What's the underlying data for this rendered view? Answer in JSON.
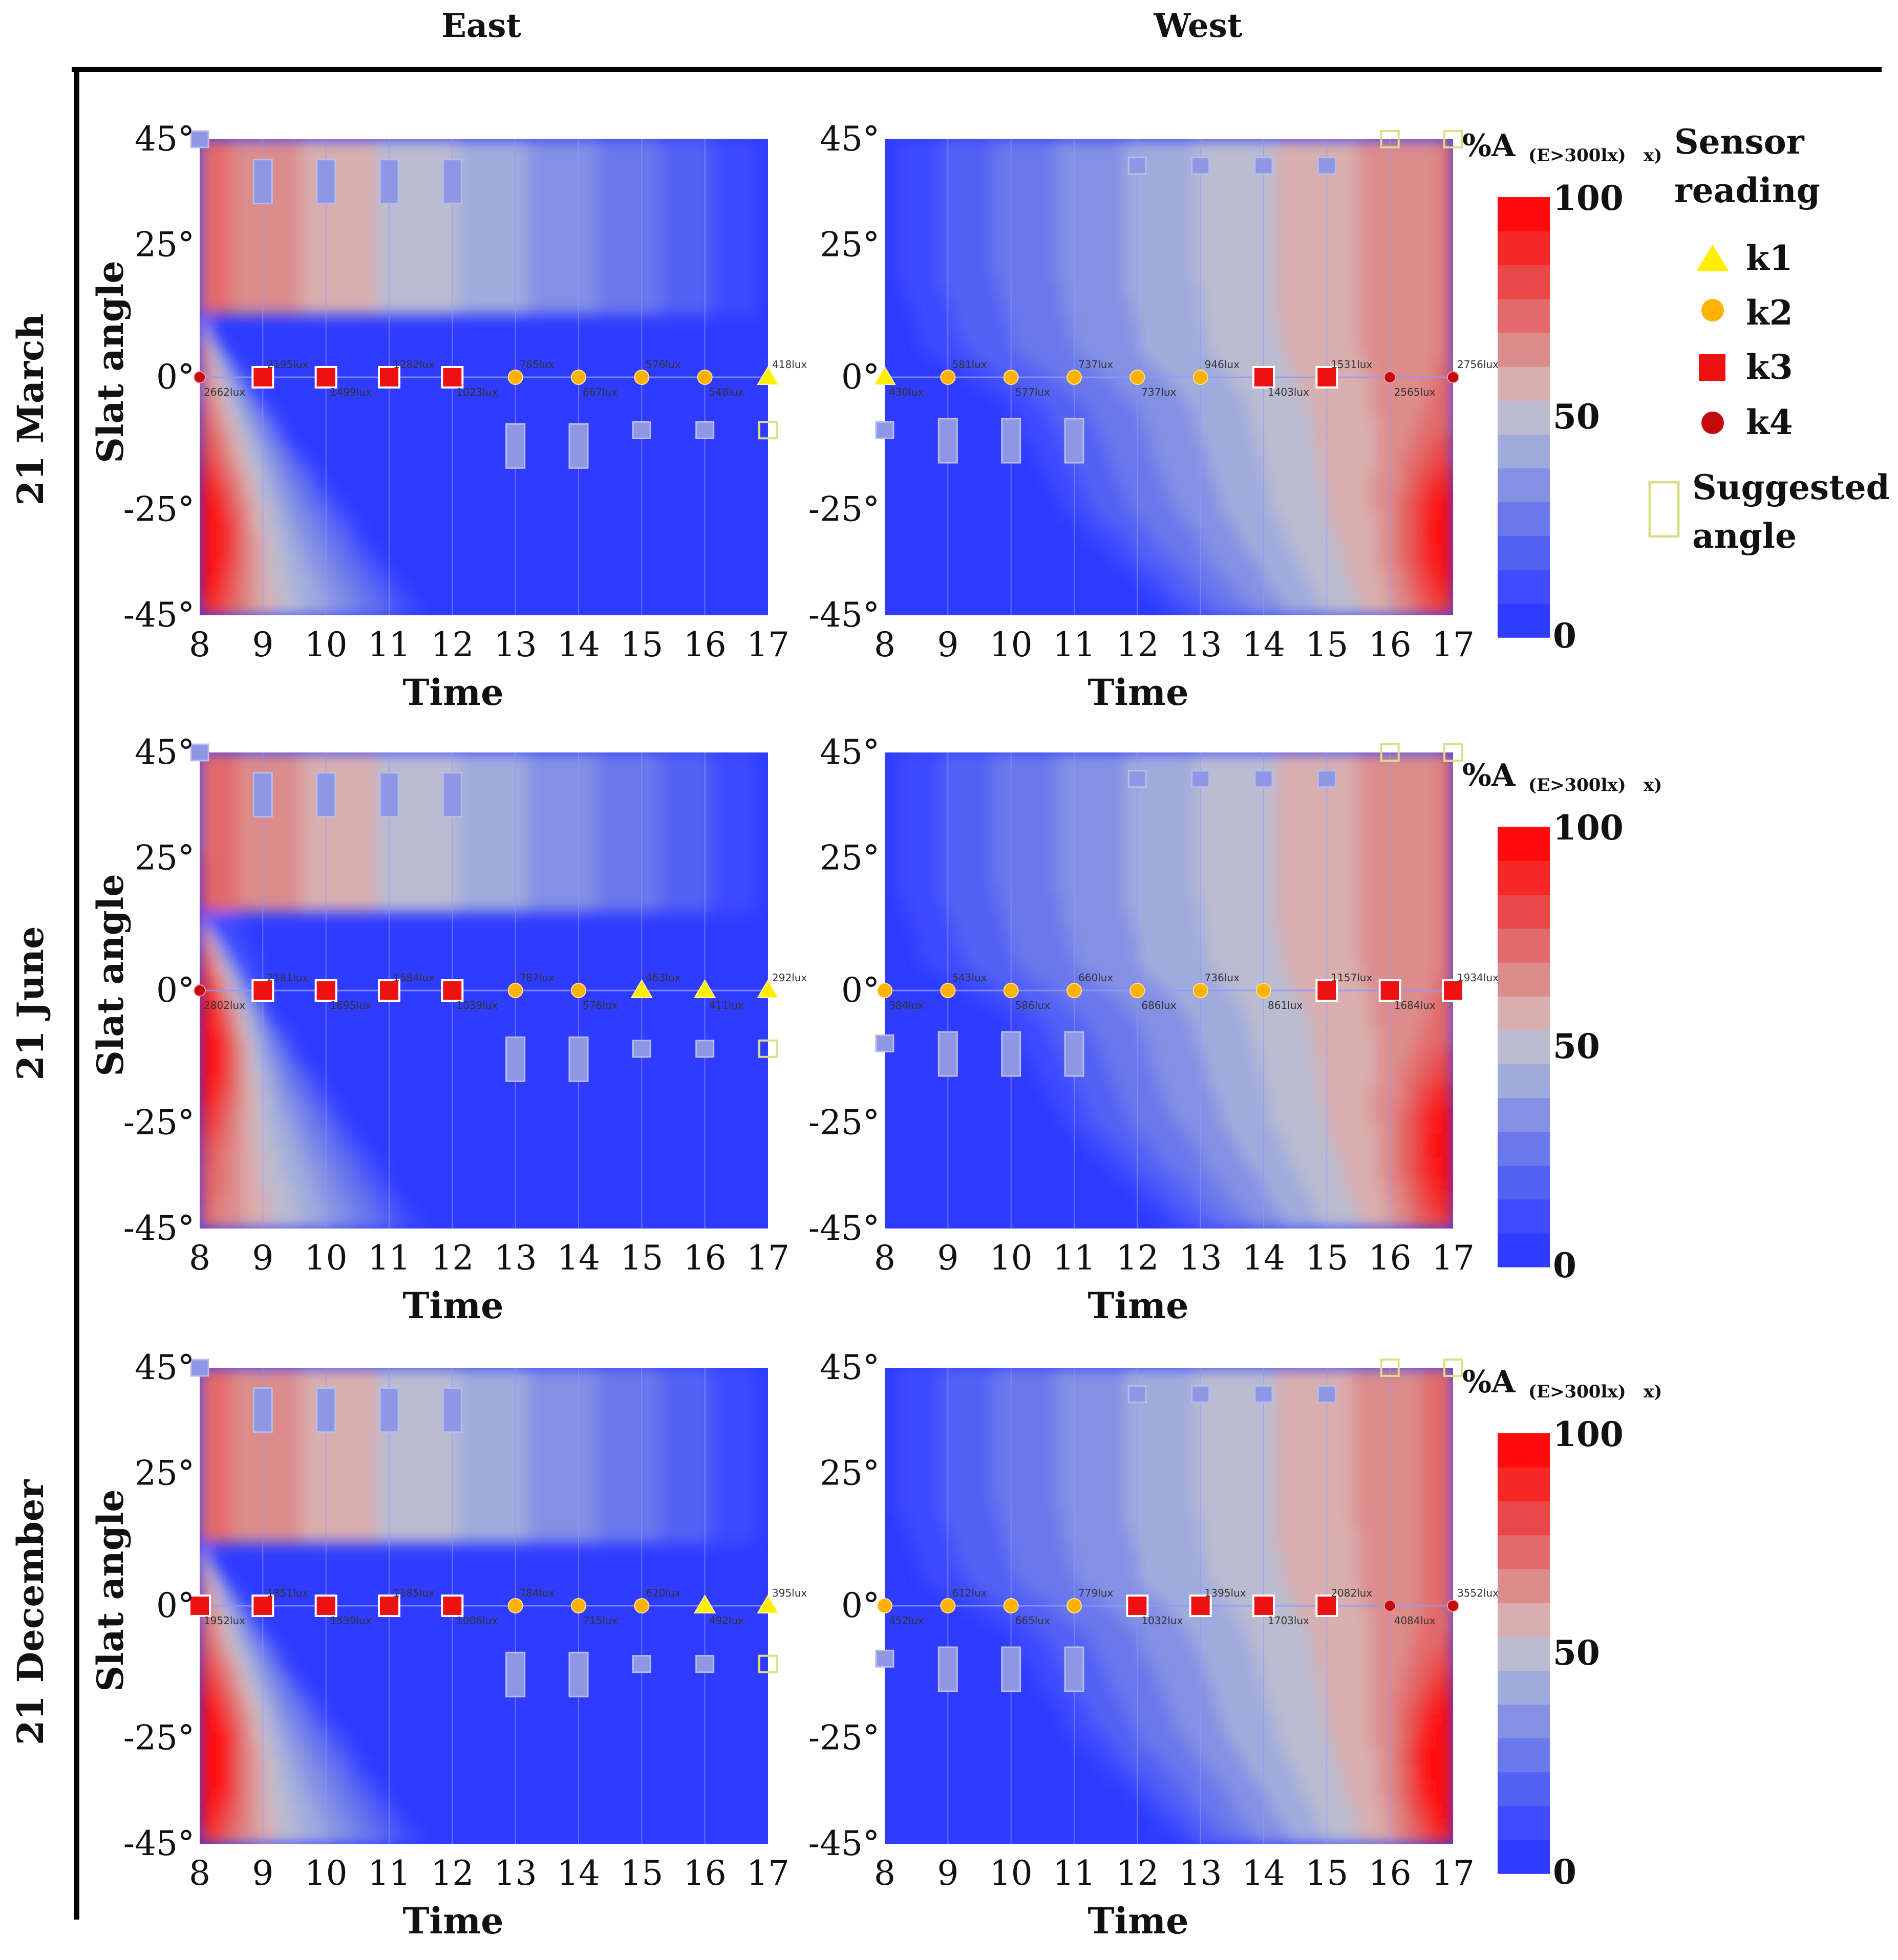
{
  "colors": {
    "background": "#2f3cff",
    "gridline": "#8f98ff",
    "k1": "#ffee00",
    "k2": "#ffb300",
    "k3": "#ee1111",
    "k4": "#c40a0a",
    "suggested": "#dede88",
    "scale": [
      "#2f3cff",
      "#3e4bff",
      "#5362f4",
      "#6a78ec",
      "#8390e4",
      "#a0abdd",
      "#bbbcd0",
      "#d9aeae",
      "#dd8c8c",
      "#e36a6a",
      "#ea4848",
      "#f52727",
      "#ff0b0b"
    ]
  },
  "columns": [
    "East",
    "West"
  ],
  "rows": [
    "21 March",
    "21 June",
    "21 December"
  ],
  "axes": {
    "xlabel": "Time",
    "ylabel": "Slat angle",
    "xticks": [
      "8",
      "9",
      "10",
      "11",
      "12",
      "13",
      "14",
      "15",
      "16",
      "17"
    ],
    "yticks": [
      "45°",
      "25°",
      "0°",
      "-25°",
      "-45°"
    ]
  },
  "colorbar": {
    "title": "%A",
    "subscript": "(E>300lx)",
    "suffix": "x)",
    "ticks": [
      "100",
      "50",
      "0"
    ]
  },
  "legend": {
    "title_line1": "Sensor",
    "title_line2": "reading",
    "items": [
      {
        "key": "k1",
        "label": "k1",
        "shape": "triangle"
      },
      {
        "key": "k2",
        "label": "k2",
        "shape": "circle"
      },
      {
        "key": "k3",
        "label": "k3",
        "shape": "square"
      },
      {
        "key": "k4",
        "label": "k4",
        "shape": "dot"
      }
    ],
    "suggested_line1": "Suggested",
    "suggested_line2": "angle"
  },
  "chart_data": [
    {
      "type": "heatmap",
      "row": "21 March",
      "column": "East",
      "xlabel": "Time",
      "ylabel": "Slat angle",
      "xlim": [
        8,
        17
      ],
      "ylim": [
        -45,
        45
      ],
      "colorbar_range": [
        0,
        100
      ],
      "glare_bands": [
        [
          0,
          12
        ],
        [
          40,
          -45
        ],
        [
          73,
          -30
        ],
        [
          92,
          -10
        ],
        [
          100,
          5
        ],
        [
          100,
          25
        ],
        [
          100,
          45
        ]
      ],
      "extra": 0.06,
      "blob": {
        "angle": -30,
        "amp": 0.35
      },
      "sensors": [
        {
          "hour": 8,
          "key": "k4",
          "lux_below": "2662lux"
        },
        {
          "hour": 9,
          "key": "k3",
          "lux_above": "2195lux"
        },
        {
          "hour": 10,
          "key": "k3",
          "lux_below": "1499lux"
        },
        {
          "hour": 11,
          "key": "k3",
          "lux_above": "1282lux"
        },
        {
          "hour": 12,
          "key": "k3",
          "lux_below": "1023lux"
        },
        {
          "hour": 13,
          "key": "k2",
          "lux_above": "765lux"
        },
        {
          "hour": 14,
          "key": "k2",
          "lux_below": "667lux"
        },
        {
          "hour": 15,
          "key": "k2",
          "lux_above": "576lux"
        },
        {
          "hour": 16,
          "key": "k2",
          "lux_below": "548lux"
        },
        {
          "hour": 17,
          "key": "k1",
          "lux_above": "418lux"
        }
      ],
      "suggested_angles": [
        {
          "hour": 8,
          "angle": 45,
          "size": "small"
        },
        {
          "hour": 9,
          "angle": 37,
          "size": "tall"
        },
        {
          "hour": 10,
          "angle": 37,
          "size": "tall"
        },
        {
          "hour": 11,
          "angle": 37,
          "size": "tall"
        },
        {
          "hour": 12,
          "angle": 37,
          "size": "tall"
        },
        {
          "hour": 13,
          "angle": -13,
          "size": "tall"
        },
        {
          "hour": 14,
          "angle": -13,
          "size": "tall"
        },
        {
          "hour": 15,
          "angle": -10,
          "size": "small"
        },
        {
          "hour": 16,
          "angle": -10,
          "size": "small"
        },
        {
          "hour": 17,
          "angle": -10,
          "size": "small",
          "outline": true
        }
      ]
    },
    {
      "type": "heatmap",
      "row": "21 March",
      "column": "West",
      "xlabel": "Time",
      "ylabel": "Slat angle",
      "xlim": [
        8,
        17
      ],
      "ylim": [
        -45,
        45
      ],
      "colorbar_range": [
        0,
        100
      ],
      "glare_bands": [
        [
          0,
          -45
        ],
        [
          50,
          -45
        ],
        [
          70,
          -25
        ],
        [
          80,
          -5
        ],
        [
          95,
          5
        ],
        [
          100,
          20
        ],
        [
          100,
          45
        ]
      ],
      "extra": 0.0,
      "blob": {
        "angle": -30,
        "amp": 0.35
      },
      "sensors": [
        {
          "hour": 8,
          "key": "k1",
          "lux_below": "430lux"
        },
        {
          "hour": 9,
          "key": "k2",
          "lux_above": "581lux"
        },
        {
          "hour": 10,
          "key": "k2",
          "lux_below": "577lux"
        },
        {
          "hour": 11,
          "key": "k2",
          "lux_above": "737lux"
        },
        {
          "hour": 12,
          "key": "k2",
          "lux_below": "737lux"
        },
        {
          "hour": 13,
          "key": "k2",
          "lux_above": "946lux"
        },
        {
          "hour": 14,
          "key": "k3",
          "lux_below": "1403lux"
        },
        {
          "hour": 15,
          "key": "k3",
          "lux_above": "1531lux"
        },
        {
          "hour": 16,
          "key": "k4",
          "lux_below": "2565lux"
        },
        {
          "hour": 17,
          "key": "k4",
          "lux_above": "2756lux"
        }
      ],
      "suggested_angles": [
        {
          "hour": 8,
          "angle": -10,
          "size": "small"
        },
        {
          "hour": 9,
          "angle": -12,
          "size": "tall"
        },
        {
          "hour": 10,
          "angle": -12,
          "size": "tall"
        },
        {
          "hour": 11,
          "angle": -12,
          "size": "tall"
        },
        {
          "hour": 12,
          "angle": 40,
          "size": "small"
        },
        {
          "hour": 13,
          "angle": 40,
          "size": "small"
        },
        {
          "hour": 14,
          "angle": 40,
          "size": "small"
        },
        {
          "hour": 15,
          "angle": 40,
          "size": "small"
        },
        {
          "hour": 16,
          "angle": 45,
          "size": "small",
          "outline": true
        },
        {
          "hour": 17,
          "angle": 45,
          "size": "small",
          "outline": true
        }
      ]
    },
    {
      "type": "heatmap",
      "row": "21 June",
      "column": "East",
      "xlabel": "Time",
      "ylabel": "Slat angle",
      "xlim": [
        8,
        17
      ],
      "ylim": [
        -45,
        45
      ],
      "colorbar_range": [
        0,
        100
      ],
      "glare_bands": [
        [
          0,
          15
        ],
        [
          40,
          -45
        ],
        [
          73,
          -30
        ],
        [
          92,
          -10
        ],
        [
          100,
          5
        ],
        [
          100,
          25
        ],
        [
          100,
          45
        ]
      ],
      "extra": 0.08,
      "blob": {
        "angle": -10,
        "amp": 0.35
      },
      "sensors": [
        {
          "hour": 8,
          "key": "k4",
          "lux_below": "2802lux"
        },
        {
          "hour": 9,
          "key": "k3",
          "lux_above": "2181lux"
        },
        {
          "hour": 10,
          "key": "k3",
          "lux_below": "1695lux"
        },
        {
          "hour": 11,
          "key": "k3",
          "lux_above": "1584lux"
        },
        {
          "hour": 12,
          "key": "k3",
          "lux_below": "1039lux"
        },
        {
          "hour": 13,
          "key": "k2",
          "lux_above": "787lux"
        },
        {
          "hour": 14,
          "key": "k2",
          "lux_below": "576lux"
        },
        {
          "hour": 15,
          "key": "k1",
          "lux_above": "463lux"
        },
        {
          "hour": 16,
          "key": "k1",
          "lux_below": "411lux"
        },
        {
          "hour": 17,
          "key": "k1",
          "lux_above": "292lux"
        }
      ],
      "suggested_angles": [
        {
          "hour": 8,
          "angle": 45,
          "size": "small"
        },
        {
          "hour": 9,
          "angle": 37,
          "size": "tall"
        },
        {
          "hour": 10,
          "angle": 37,
          "size": "tall"
        },
        {
          "hour": 11,
          "angle": 37,
          "size": "tall"
        },
        {
          "hour": 12,
          "angle": 37,
          "size": "tall"
        },
        {
          "hour": 13,
          "angle": -13,
          "size": "tall"
        },
        {
          "hour": 14,
          "angle": -13,
          "size": "tall"
        },
        {
          "hour": 15,
          "angle": -11,
          "size": "small"
        },
        {
          "hour": 16,
          "angle": -11,
          "size": "small"
        },
        {
          "hour": 17,
          "angle": -11,
          "size": "small",
          "outline": true
        }
      ]
    },
    {
      "type": "heatmap",
      "row": "21 June",
      "column": "West",
      "xlabel": "Time",
      "ylabel": "Slat angle",
      "xlim": [
        8,
        17
      ],
      "ylim": [
        -45,
        45
      ],
      "colorbar_range": [
        0,
        100
      ],
      "glare_bands": [
        [
          0,
          -45
        ],
        [
          50,
          -45
        ],
        [
          70,
          -25
        ],
        [
          80,
          -5
        ],
        [
          95,
          5
        ],
        [
          100,
          20
        ],
        [
          100,
          45
        ]
      ],
      "extra": 0.0,
      "blob": {
        "angle": -30,
        "amp": 0.35
      },
      "sensors": [
        {
          "hour": 8,
          "key": "k2",
          "lux_below": "384lux"
        },
        {
          "hour": 9,
          "key": "k2",
          "lux_above": "543lux"
        },
        {
          "hour": 10,
          "key": "k2",
          "lux_below": "586lux"
        },
        {
          "hour": 11,
          "key": "k2",
          "lux_above": "660lux"
        },
        {
          "hour": 12,
          "key": "k2",
          "lux_below": "686lux"
        },
        {
          "hour": 13,
          "key": "k2",
          "lux_above": "736lux"
        },
        {
          "hour": 14,
          "key": "k2",
          "lux_below": "861lux"
        },
        {
          "hour": 15,
          "key": "k3",
          "lux_above": "1157lux"
        },
        {
          "hour": 16,
          "key": "k3",
          "lux_below": "1684lux"
        },
        {
          "hour": 17,
          "key": "k3",
          "lux_above": "1934lux"
        }
      ],
      "suggested_angles": [
        {
          "hour": 8,
          "angle": -10,
          "size": "small"
        },
        {
          "hour": 9,
          "angle": -12,
          "size": "tall"
        },
        {
          "hour": 10,
          "angle": -12,
          "size": "tall"
        },
        {
          "hour": 11,
          "angle": -12,
          "size": "tall"
        },
        {
          "hour": 12,
          "angle": 40,
          "size": "small"
        },
        {
          "hour": 13,
          "angle": 40,
          "size": "small"
        },
        {
          "hour": 14,
          "angle": 40,
          "size": "small"
        },
        {
          "hour": 15,
          "angle": 40,
          "size": "small"
        },
        {
          "hour": 16,
          "angle": 45,
          "size": "small",
          "outline": true
        },
        {
          "hour": 17,
          "angle": 45,
          "size": "small",
          "outline": true
        }
      ]
    },
    {
      "type": "heatmap",
      "row": "21 December",
      "column": "East",
      "xlabel": "Time",
      "ylabel": "Slat angle",
      "xlim": [
        8,
        17
      ],
      "ylim": [
        -45,
        45
      ],
      "colorbar_range": [
        0,
        100
      ],
      "glare_bands": [
        [
          0,
          12
        ],
        [
          40,
          -45
        ],
        [
          73,
          -30
        ],
        [
          92,
          -10
        ],
        [
          100,
          5
        ],
        [
          100,
          25
        ],
        [
          100,
          45
        ]
      ],
      "extra": 0.06,
      "blob": {
        "angle": -28,
        "amp": 0.4
      },
      "sensors": [
        {
          "hour": 8,
          "key": "k3",
          "lux_below": "1952lux"
        },
        {
          "hour": 9,
          "key": "k3",
          "lux_above": "1851lux"
        },
        {
          "hour": 10,
          "key": "k3",
          "lux_below": "1539lux"
        },
        {
          "hour": 11,
          "key": "k3",
          "lux_above": "1185lux"
        },
        {
          "hour": 12,
          "key": "k3",
          "lux_below": "1006lux"
        },
        {
          "hour": 13,
          "key": "k2",
          "lux_above": "784lux"
        },
        {
          "hour": 14,
          "key": "k2",
          "lux_below": "715lux"
        },
        {
          "hour": 15,
          "key": "k2",
          "lux_above": "620lux"
        },
        {
          "hour": 16,
          "key": "k1",
          "lux_below": "492lux"
        },
        {
          "hour": 17,
          "key": "k1",
          "lux_above": "395lux"
        }
      ],
      "suggested_angles": [
        {
          "hour": 8,
          "angle": 45,
          "size": "small"
        },
        {
          "hour": 9,
          "angle": 37,
          "size": "tall"
        },
        {
          "hour": 10,
          "angle": 37,
          "size": "tall"
        },
        {
          "hour": 11,
          "angle": 37,
          "size": "tall"
        },
        {
          "hour": 12,
          "angle": 37,
          "size": "tall"
        },
        {
          "hour": 13,
          "angle": -13,
          "size": "tall"
        },
        {
          "hour": 14,
          "angle": -13,
          "size": "tall"
        },
        {
          "hour": 15,
          "angle": -11,
          "size": "small"
        },
        {
          "hour": 16,
          "angle": -11,
          "size": "small"
        },
        {
          "hour": 17,
          "angle": -11,
          "size": "small",
          "outline": true
        }
      ]
    },
    {
      "type": "heatmap",
      "row": "21 December",
      "column": "West",
      "xlabel": "Time",
      "ylabel": "Slat angle",
      "xlim": [
        8,
        17
      ],
      "ylim": [
        -45,
        45
      ],
      "colorbar_range": [
        0,
        100
      ],
      "glare_bands": [
        [
          0,
          -45
        ],
        [
          48,
          -45
        ],
        [
          68,
          -25
        ],
        [
          80,
          -5
        ],
        [
          95,
          5
        ],
        [
          100,
          20
        ],
        [
          100,
          45
        ]
      ],
      "extra": 0.05,
      "blob": {
        "angle": -30,
        "amp": 0.4
      },
      "sensors": [
        {
          "hour": 8,
          "key": "k2",
          "lux_below": "452lux"
        },
        {
          "hour": 9,
          "key": "k2",
          "lux_above": "612lux"
        },
        {
          "hour": 10,
          "key": "k2",
          "lux_below": "665lux"
        },
        {
          "hour": 11,
          "key": "k2",
          "lux_above": "779lux"
        },
        {
          "hour": 12,
          "key": "k3",
          "lux_below": "1032lux"
        },
        {
          "hour": 13,
          "key": "k3",
          "lux_above": "1395lux"
        },
        {
          "hour": 14,
          "key": "k3",
          "lux_below": "1703lux"
        },
        {
          "hour": 15,
          "key": "k3",
          "lux_above": "2082lux"
        },
        {
          "hour": 16,
          "key": "k4",
          "lux_below": "4084lux"
        },
        {
          "hour": 17,
          "key": "k4",
          "lux_above": "3552lux"
        }
      ],
      "suggested_angles": [
        {
          "hour": 8,
          "angle": -10,
          "size": "small"
        },
        {
          "hour": 9,
          "angle": -12,
          "size": "tall"
        },
        {
          "hour": 10,
          "angle": -12,
          "size": "tall"
        },
        {
          "hour": 11,
          "angle": -12,
          "size": "tall"
        },
        {
          "hour": 12,
          "angle": 40,
          "size": "small"
        },
        {
          "hour": 13,
          "angle": 40,
          "size": "small"
        },
        {
          "hour": 14,
          "angle": 40,
          "size": "small"
        },
        {
          "hour": 15,
          "angle": 40,
          "size": "small"
        },
        {
          "hour": 16,
          "angle": 45,
          "size": "small",
          "outline": true
        },
        {
          "hour": 17,
          "angle": 45,
          "size": "small",
          "outline": true
        }
      ]
    }
  ]
}
